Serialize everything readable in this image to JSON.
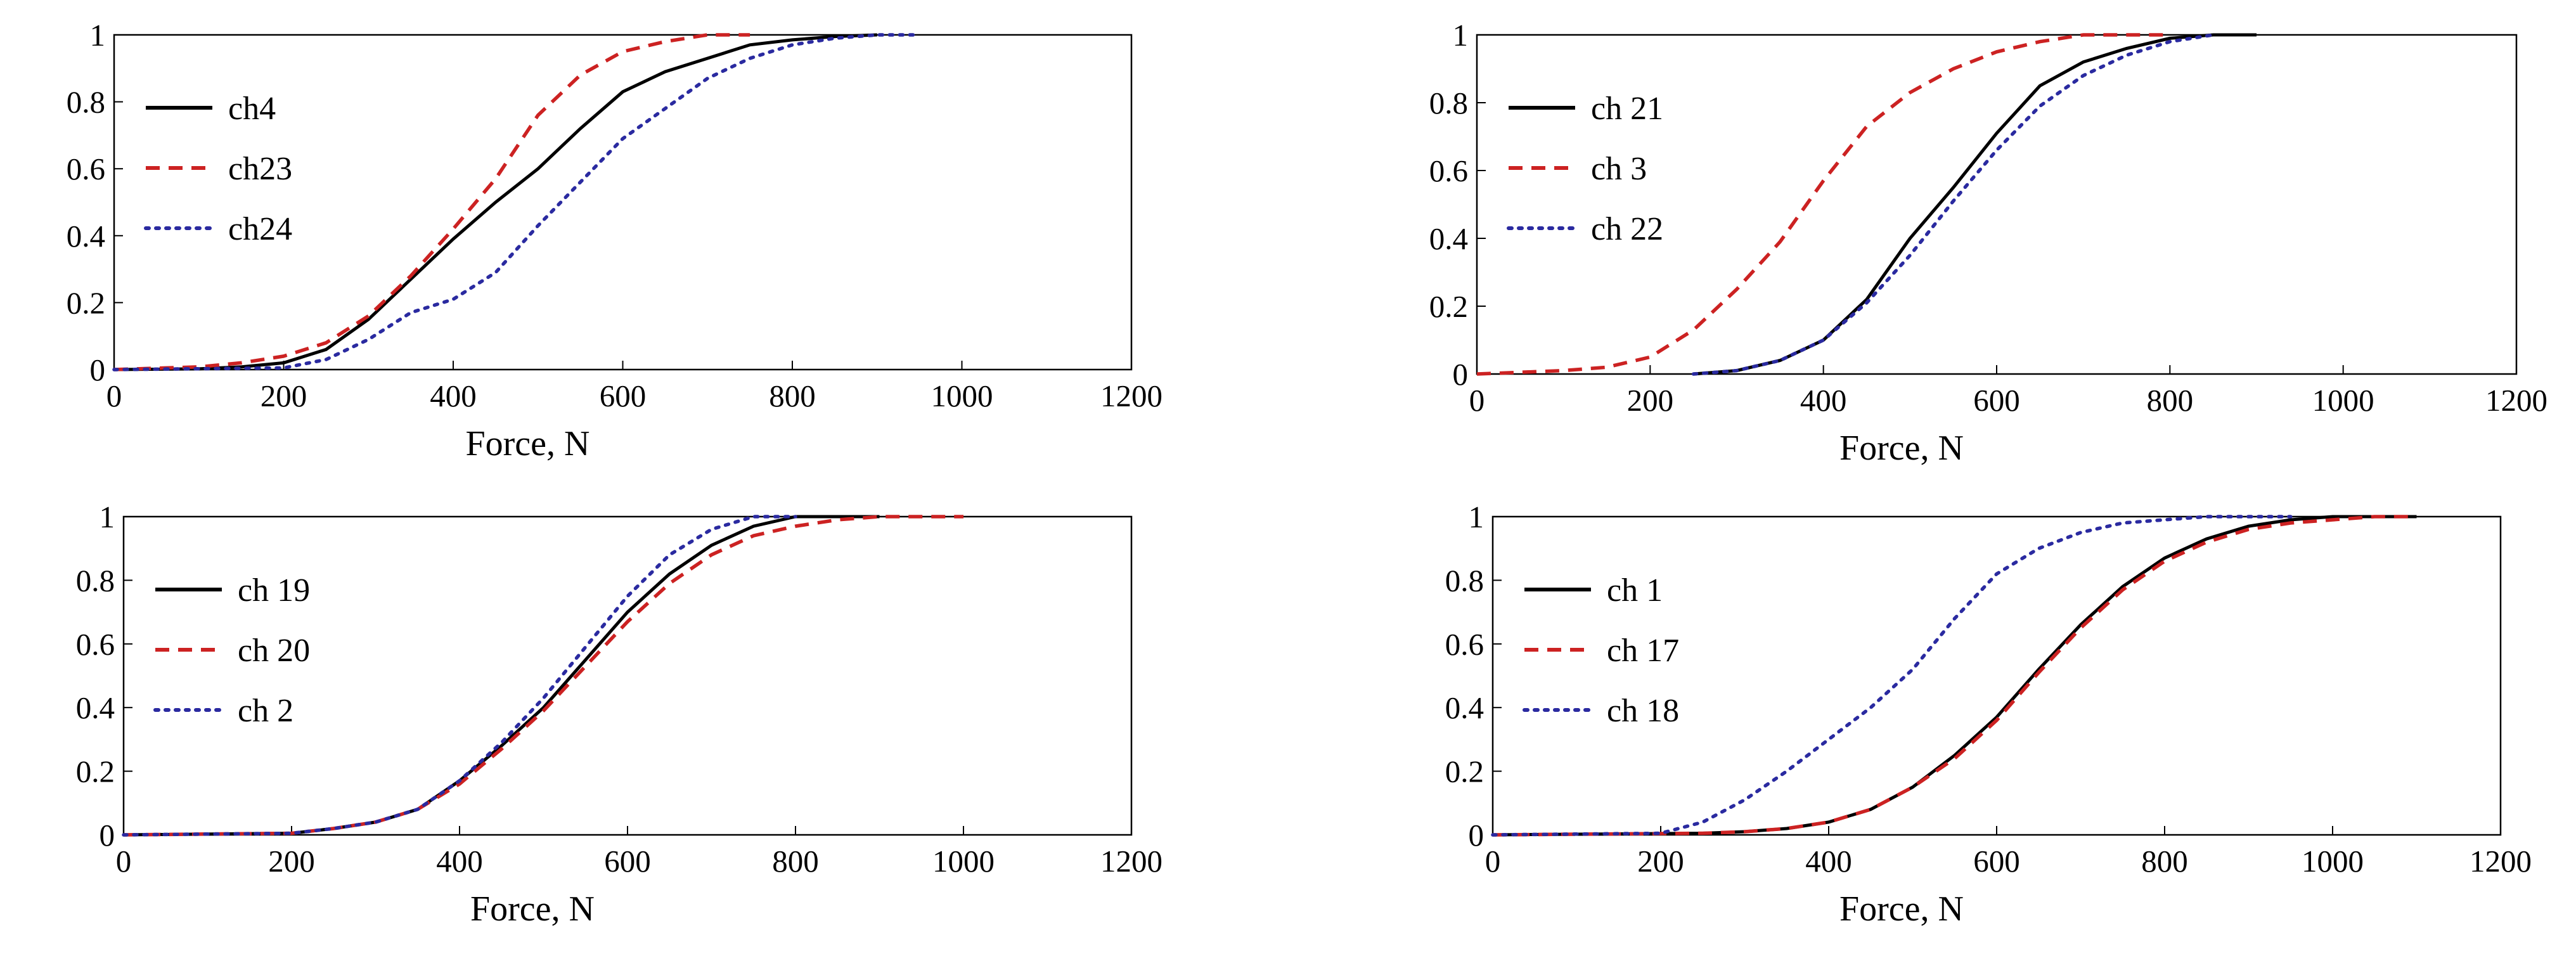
{
  "chart_data": [
    {
      "type": "line",
      "xlabel": "Force, N",
      "ylabel": "",
      "xlim": [
        0,
        1200
      ],
      "ylim": [
        0,
        1
      ],
      "xticks": [
        "0",
        "200",
        "400",
        "600",
        "800",
        "1000",
        "1200"
      ],
      "yticks": [
        "0",
        "0.2",
        "0.4",
        "0.6",
        "0.8",
        "1"
      ],
      "grid": false,
      "legend_position": "top-left",
      "series": [
        {
          "name": "ch4",
          "style": "solid",
          "color": "#000000",
          "x": [
            0,
            100,
            150,
            200,
            250,
            300,
            350,
            400,
            450,
            500,
            550,
            600,
            650,
            700,
            750,
            800,
            850,
            900
          ],
          "y": [
            0,
            0.002,
            0.008,
            0.02,
            0.06,
            0.15,
            0.27,
            0.39,
            0.5,
            0.6,
            0.72,
            0.83,
            0.89,
            0.93,
            0.97,
            0.985,
            0.995,
            1
          ]
        },
        {
          "name": "ch23",
          "style": "dashed",
          "color": "#cc2222",
          "x": [
            0,
            100,
            150,
            200,
            250,
            300,
            350,
            400,
            450,
            500,
            550,
            600,
            650,
            700,
            750
          ],
          "y": [
            0,
            0.008,
            0.02,
            0.04,
            0.08,
            0.16,
            0.28,
            0.42,
            0.57,
            0.76,
            0.88,
            0.95,
            0.98,
            1,
            1
          ]
        },
        {
          "name": "ch24",
          "style": "dotted",
          "color": "#2a2aa0",
          "x": [
            0,
            200,
            250,
            300,
            350,
            400,
            450,
            500,
            550,
            600,
            650,
            700,
            750,
            800,
            850,
            900,
            950
          ],
          "y": [
            0,
            0.005,
            0.03,
            0.09,
            0.17,
            0.21,
            0.29,
            0.43,
            0.56,
            0.69,
            0.78,
            0.87,
            0.93,
            0.97,
            0.99,
            1,
            1
          ]
        }
      ]
    },
    {
      "type": "line",
      "xlabel": "Force, N",
      "ylabel": "",
      "xlim": [
        0,
        1200
      ],
      "ylim": [
        0,
        1
      ],
      "xticks": [
        "0",
        "200",
        "400",
        "600",
        "800",
        "1000",
        "1200"
      ],
      "yticks": [
        "0",
        "0.2",
        "0.4",
        "0.6",
        "0.8",
        "1"
      ],
      "grid": false,
      "legend_position": "top-left",
      "series": [
        {
          "name": "ch 21",
          "style": "solid",
          "color": "#000000",
          "x": [
            250,
            300,
            350,
            400,
            450,
            500,
            550,
            600,
            650,
            700,
            750,
            800,
            850,
            900
          ],
          "y": [
            0,
            0.01,
            0.04,
            0.1,
            0.22,
            0.4,
            0.55,
            0.71,
            0.85,
            0.92,
            0.96,
            0.99,
            1,
            1
          ]
        },
        {
          "name": "ch 3",
          "style": "dashed",
          "color": "#cc2222",
          "x": [
            0,
            100,
            150,
            200,
            250,
            300,
            350,
            400,
            450,
            500,
            550,
            600,
            650,
            700,
            750,
            800
          ],
          "y": [
            0,
            0.01,
            0.02,
            0.05,
            0.13,
            0.25,
            0.39,
            0.57,
            0.73,
            0.83,
            0.9,
            0.95,
            0.98,
            1,
            1,
            1
          ]
        },
        {
          "name": "ch 22",
          "style": "dotted",
          "color": "#2a2aa0",
          "x": [
            250,
            300,
            350,
            400,
            450,
            500,
            550,
            600,
            650,
            700,
            750,
            800,
            850
          ],
          "y": [
            0,
            0.01,
            0.04,
            0.1,
            0.21,
            0.35,
            0.51,
            0.66,
            0.79,
            0.88,
            0.94,
            0.98,
            1
          ]
        }
      ]
    },
    {
      "type": "line",
      "xlabel": "Force, N",
      "ylabel": "",
      "xlim": [
        0,
        1200
      ],
      "ylim": [
        0,
        1
      ],
      "xticks": [
        "0",
        "200",
        "400",
        "600",
        "800",
        "1000",
        "1200"
      ],
      "yticks": [
        "0",
        "0.2",
        "0.4",
        "0.6",
        "0.8",
        "1"
      ],
      "grid": false,
      "legend_position": "top-left",
      "series": [
        {
          "name": "ch 19",
          "style": "solid",
          "color": "#000000",
          "x": [
            0,
            200,
            250,
            300,
            350,
            400,
            450,
            500,
            550,
            600,
            650,
            700,
            750,
            800,
            850,
            900
          ],
          "y": [
            0,
            0.005,
            0.02,
            0.04,
            0.08,
            0.17,
            0.28,
            0.4,
            0.55,
            0.7,
            0.82,
            0.91,
            0.97,
            1,
            1,
            1
          ]
        },
        {
          "name": "ch 20",
          "style": "dashed",
          "color": "#cc2222",
          "x": [
            0,
            200,
            250,
            300,
            350,
            400,
            450,
            500,
            550,
            600,
            650,
            700,
            750,
            800,
            850,
            900,
            950,
            1000
          ],
          "y": [
            0,
            0.005,
            0.02,
            0.04,
            0.08,
            0.16,
            0.27,
            0.39,
            0.53,
            0.67,
            0.79,
            0.88,
            0.94,
            0.97,
            0.99,
            1,
            1,
            1
          ]
        },
        {
          "name": "ch 2",
          "style": "dotted",
          "color": "#2a2aa0",
          "x": [
            0,
            200,
            250,
            300,
            350,
            400,
            450,
            500,
            550,
            600,
            650,
            700,
            750,
            800
          ],
          "y": [
            0,
            0.005,
            0.02,
            0.04,
            0.08,
            0.17,
            0.29,
            0.43,
            0.59,
            0.75,
            0.88,
            0.96,
            1,
            1
          ]
        }
      ]
    },
    {
      "type": "line",
      "xlabel": "Force, N",
      "ylabel": "",
      "xlim": [
        0,
        1200
      ],
      "ylim": [
        0,
        1
      ],
      "xticks": [
        "0",
        "200",
        "400",
        "600",
        "800",
        "1000",
        "1200"
      ],
      "yticks": [
        "0",
        "0.2",
        "0.4",
        "0.6",
        "0.8",
        "1"
      ],
      "grid": false,
      "legend_position": "top-left",
      "series": [
        {
          "name": "ch 1",
          "style": "solid",
          "color": "#000000",
          "x": [
            0,
            250,
            300,
            350,
            400,
            450,
            500,
            550,
            600,
            650,
            700,
            750,
            800,
            850,
            900,
            950,
            1000,
            1050,
            1100
          ],
          "y": [
            0,
            0.005,
            0.01,
            0.02,
            0.04,
            0.08,
            0.15,
            0.25,
            0.37,
            0.52,
            0.66,
            0.78,
            0.87,
            0.93,
            0.97,
            0.99,
            1,
            1,
            1
          ]
        },
        {
          "name": "ch 17",
          "style": "dashed",
          "color": "#cc2222",
          "x": [
            0,
            250,
            300,
            350,
            400,
            450,
            500,
            550,
            600,
            650,
            700,
            750,
            800,
            850,
            900,
            950,
            1000,
            1050,
            1100
          ],
          "y": [
            0,
            0.005,
            0.01,
            0.02,
            0.04,
            0.08,
            0.15,
            0.24,
            0.36,
            0.51,
            0.65,
            0.77,
            0.86,
            0.92,
            0.96,
            0.98,
            0.99,
            1,
            1
          ]
        },
        {
          "name": "ch 18",
          "style": "dotted",
          "color": "#2a2aa0",
          "x": [
            0,
            200,
            250,
            300,
            350,
            400,
            450,
            500,
            550,
            600,
            650,
            700,
            750,
            800,
            850,
            900,
            950
          ],
          "y": [
            0,
            0.005,
            0.04,
            0.11,
            0.2,
            0.3,
            0.4,
            0.52,
            0.68,
            0.82,
            0.9,
            0.95,
            0.98,
            0.99,
            1,
            1,
            1
          ]
        }
      ]
    }
  ]
}
